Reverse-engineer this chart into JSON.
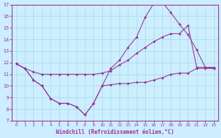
{
  "xlabel": "Windchill (Refroidissement éolien,°C)",
  "bg_color": "#cceeff",
  "grid_color": "#aadddd",
  "line_color": "#993399",
  "xlim": [
    0,
    23
  ],
  "ylim": [
    7,
    17
  ],
  "yticks": [
    7,
    8,
    9,
    10,
    11,
    12,
    13,
    14,
    15,
    16,
    17
  ],
  "xticks": [
    0,
    1,
    2,
    3,
    4,
    5,
    6,
    7,
    8,
    9,
    10,
    11,
    12,
    13,
    14,
    15,
    16,
    17,
    18,
    19,
    20,
    21,
    22,
    23
  ],
  "hours": [
    0,
    1,
    2,
    3,
    4,
    5,
    6,
    7,
    8,
    9,
    10,
    11,
    12,
    13,
    14,
    15,
    16,
    17,
    18,
    19,
    20,
    21,
    22,
    23
  ],
  "line1": [
    11.9,
    11.5,
    10.5,
    10.0,
    8.9,
    8.5,
    8.5,
    8.2,
    7.5,
    8.5,
    10.0,
    10.1,
    10.2,
    10.2,
    10.3,
    10.3,
    10.5,
    10.7,
    11.0,
    11.1,
    11.1,
    11.5,
    11.5,
    11.5
  ],
  "line2": [
    11.9,
    11.5,
    10.5,
    10.0,
    8.9,
    8.5,
    8.5,
    8.2,
    7.5,
    8.5,
    10.0,
    11.5,
    12.2,
    13.3,
    14.2,
    15.9,
    17.1,
    17.2,
    16.3,
    15.3,
    14.4,
    13.1,
    11.6,
    11.5
  ],
  "line3": [
    11.9,
    11.5,
    11.2,
    11.0,
    11.0,
    11.0,
    11.0,
    11.0,
    11.0,
    11.0,
    11.1,
    11.3,
    11.8,
    12.2,
    12.8,
    13.3,
    13.8,
    14.2,
    14.5,
    14.5,
    15.2,
    11.6,
    11.6,
    11.6
  ]
}
